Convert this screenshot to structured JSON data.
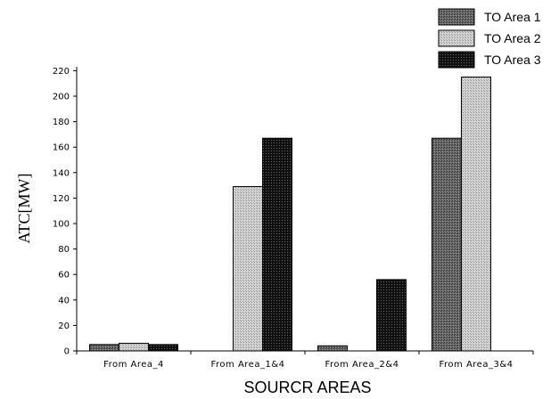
{
  "chart_data": {
    "type": "bar",
    "categories": [
      "From Area_4",
      "From Area_1&4",
      "From Area_2&4",
      "From Area_3&4"
    ],
    "series": [
      {
        "name": "TO Area 1",
        "values": [
          5,
          0,
          4,
          167
        ],
        "color": "#5a5a5a",
        "pattern": "dense-dark"
      },
      {
        "name": "TO Area 2",
        "values": [
          6,
          129,
          0,
          215
        ],
        "color": "#b8b8b8",
        "pattern": "light-dots"
      },
      {
        "name": "TO Area 3",
        "values": [
          5,
          167,
          56,
          0
        ],
        "color": "#1e1e1e",
        "pattern": "black-dots"
      }
    ],
    "xlabel": "SOURCR AREAS",
    "ylabel": "ATC[MW]",
    "ylim": [
      0,
      230
    ],
    "yticks": [
      0,
      20,
      40,
      60,
      80,
      100,
      120,
      140,
      160,
      180,
      200,
      220
    ],
    "grid": false,
    "legend_position": "top-right"
  }
}
